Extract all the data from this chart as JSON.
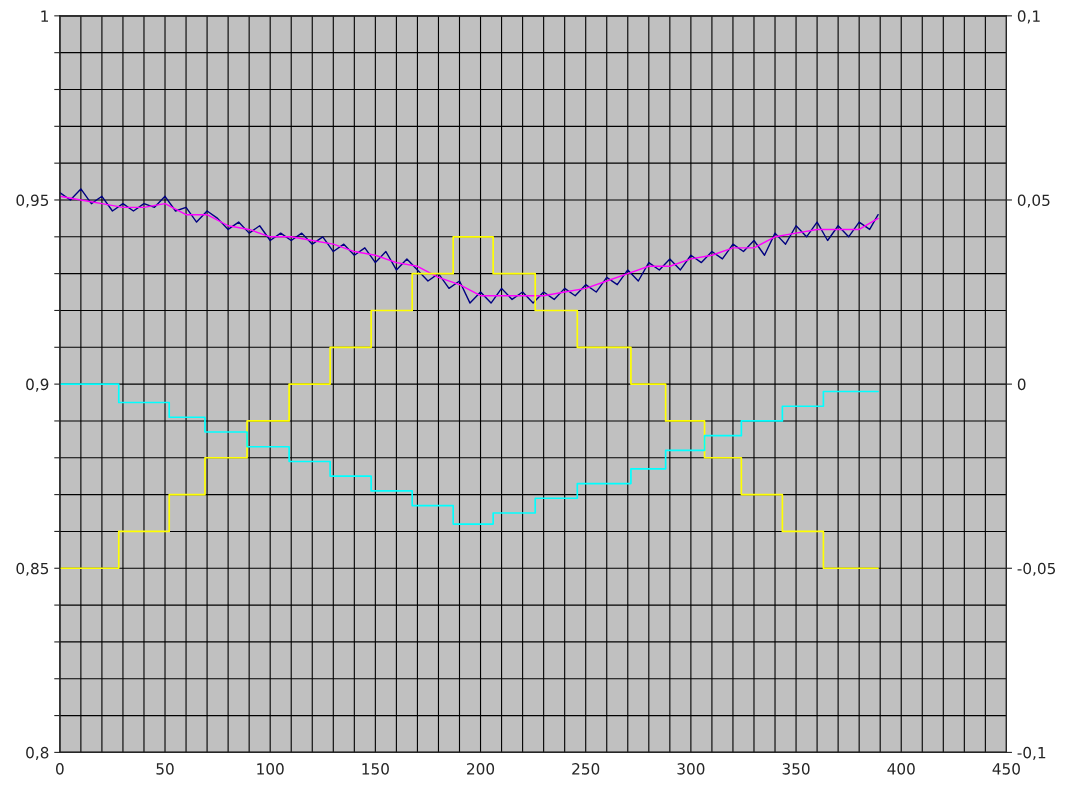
{
  "chart_data": {
    "type": "line",
    "xlim": [
      0,
      450
    ],
    "xticks": [
      0,
      {
        "value": 10,
        "label": null
      },
      {
        "value": 20,
        "label": null
      },
      {
        "value": 30,
        "label": null
      },
      {
        "value": 40,
        "label": null
      },
      50,
      {
        "value": 60,
        "label": null
      },
      {
        "value": 70,
        "label": null
      },
      {
        "value": 80,
        "label": null
      },
      {
        "value": 90,
        "label": null
      },
      100,
      {
        "value": 110,
        "label": null
      },
      {
        "value": 120,
        "label": null
      },
      {
        "value": 130,
        "label": null
      },
      {
        "value": 140,
        "label": null
      },
      150,
      {
        "value": 160,
        "label": null
      },
      {
        "value": 170,
        "label": null
      },
      {
        "value": 180,
        "label": null
      },
      {
        "value": 190,
        "label": null
      },
      200,
      {
        "value": 210,
        "label": null
      },
      {
        "value": 220,
        "label": null
      },
      {
        "value": 230,
        "label": null
      },
      {
        "value": 240,
        "label": null
      },
      250,
      {
        "value": 260,
        "label": null
      },
      {
        "value": 270,
        "label": null
      },
      {
        "value": 280,
        "label": null
      },
      {
        "value": 290,
        "label": null
      },
      300,
      {
        "value": 310,
        "label": null
      },
      {
        "value": 320,
        "label": null
      },
      {
        "value": 330,
        "label": null
      },
      {
        "value": 340,
        "label": null
      },
      350,
      {
        "value": 360,
        "label": null
      },
      {
        "value": 370,
        "label": null
      },
      {
        "value": 380,
        "label": null
      },
      {
        "value": 390,
        "label": null
      },
      400,
      {
        "value": 410,
        "label": null
      },
      {
        "value": 420,
        "label": null
      },
      {
        "value": 430,
        "label": null
      },
      {
        "value": 440,
        "label": null
      },
      450
    ],
    "ylim": [
      0.8,
      1
    ],
    "yticks": [
      {
        "value": 0.8,
        "label": "0,8"
      },
      {
        "value": 0.81,
        "label": null
      },
      {
        "value": 0.82,
        "label": null
      },
      {
        "value": 0.83,
        "label": null
      },
      {
        "value": 0.84,
        "label": null
      },
      {
        "value": 0.85,
        "label": "0,85"
      },
      {
        "value": 0.86,
        "label": null
      },
      {
        "value": 0.87,
        "label": null
      },
      {
        "value": 0.88,
        "label": null
      },
      {
        "value": 0.89,
        "label": null
      },
      {
        "value": 0.9,
        "label": "0,9"
      },
      {
        "value": 0.91,
        "label": null
      },
      {
        "value": 0.92,
        "label": null
      },
      {
        "value": 0.93,
        "label": null
      },
      {
        "value": 0.94,
        "label": null
      },
      {
        "value": 0.95,
        "label": "0,95"
      },
      {
        "value": 0.96,
        "label": null
      },
      {
        "value": 0.97,
        "label": null
      },
      {
        "value": 0.98,
        "label": null
      },
      {
        "value": 0.99,
        "label": null
      },
      {
        "value": 1,
        "label": "1"
      }
    ],
    "y2lim": [
      -0.1,
      0.1
    ],
    "y2ticks": [
      {
        "value": -0.1,
        "label": "-0,1"
      },
      {
        "value": -0.05,
        "label": "-0,05"
      },
      {
        "value": 0,
        "label": "0"
      },
      {
        "value": 0.05,
        "label": "0,05"
      },
      {
        "value": 0.1,
        "label": "0,1"
      }
    ],
    "grid": true,
    "legend": false,
    "series": [
      {
        "color": "#000080",
        "x": [
          0,
          5,
          10,
          15,
          20,
          25,
          30,
          35,
          40,
          45,
          50,
          55,
          60,
          65,
          70,
          75,
          80,
          85,
          90,
          95,
          100,
          105,
          110,
          115,
          120,
          125,
          130,
          135,
          140,
          145,
          150,
          155,
          160,
          165,
          170,
          175,
          180,
          185,
          190,
          195,
          200,
          205,
          210,
          215,
          220,
          225,
          230,
          235,
          240,
          245,
          250,
          255,
          260,
          265,
          270,
          275,
          280,
          285,
          290,
          295,
          300,
          305,
          310,
          315,
          320,
          325,
          330,
          335,
          340,
          345,
          350,
          355,
          360,
          365,
          370,
          375,
          380,
          385,
          389
        ],
        "values": [
          0.952,
          0.95,
          0.953,
          0.949,
          0.951,
          0.947,
          0.949,
          0.947,
          0.949,
          0.948,
          0.951,
          0.947,
          0.948,
          0.944,
          0.947,
          0.945,
          0.942,
          0.944,
          0.941,
          0.943,
          0.939,
          0.941,
          0.939,
          0.941,
          0.938,
          0.94,
          0.936,
          0.938,
          0.935,
          0.937,
          0.933,
          0.936,
          0.931,
          0.934,
          0.931,
          0.928,
          0.93,
          0.926,
          0.928,
          0.922,
          0.925,
          0.922,
          0.926,
          0.923,
          0.925,
          0.922,
          0.925,
          0.923,
          0.926,
          0.924,
          0.927,
          0.925,
          0.929,
          0.927,
          0.931,
          0.928,
          0.933,
          0.931,
          0.934,
          0.931,
          0.935,
          0.933,
          0.936,
          0.934,
          0.938,
          0.936,
          0.939,
          0.935,
          0.941,
          0.938,
          0.943,
          0.94,
          0.944,
          0.939,
          0.943,
          0.94,
          0.944,
          0.942,
          0.946
        ]
      },
      {
        "color": "#ff00ff",
        "x": [
          0,
          10,
          20,
          30,
          40,
          50,
          60,
          70,
          80,
          90,
          100,
          110,
          120,
          130,
          140,
          150,
          160,
          170,
          180,
          190,
          200,
          210,
          220,
          230,
          240,
          250,
          260,
          270,
          280,
          290,
          300,
          310,
          320,
          330,
          340,
          350,
          360,
          370,
          380,
          389
        ],
        "values": [
          0.951,
          0.95,
          0.949,
          0.948,
          0.948,
          0.949,
          0.946,
          0.946,
          0.943,
          0.942,
          0.94,
          0.94,
          0.939,
          0.938,
          0.936,
          0.935,
          0.933,
          0.932,
          0.929,
          0.927,
          0.924,
          0.924,
          0.924,
          0.924,
          0.925,
          0.926,
          0.928,
          0.93,
          0.932,
          0.932,
          0.934,
          0.935,
          0.937,
          0.937,
          0.94,
          0.941,
          0.942,
          0.942,
          0.942,
          0.945
        ]
      },
      {
        "type": "step",
        "color": "#ffff00",
        "x": [
          0,
          28,
          52,
          69,
          89,
          109,
          128.5,
          148,
          167.5,
          187,
          206,
          226,
          246,
          271.5,
          288,
          306.5,
          324,
          343.5,
          363,
          389
        ],
        "values": [
          0.85,
          0.86,
          0.87,
          0.88,
          0.89,
          0.9,
          0.91,
          0.92,
          0.93,
          0.94,
          0.93,
          0.92,
          0.91,
          0.9,
          0.89,
          0.88,
          0.87,
          0.86,
          0.85,
          0.85
        ]
      },
      {
        "type": "step",
        "color": "#00ffff",
        "x": [
          0,
          28,
          52,
          69,
          89,
          109,
          128.5,
          148,
          167.5,
          187,
          206,
          226,
          246,
          271.5,
          288,
          306.5,
          324,
          343.5,
          363,
          389
        ],
        "values": [
          0.9,
          0.895,
          0.891,
          0.887,
          0.883,
          0.879,
          0.875,
          0.871,
          0.867,
          0.862,
          0.865,
          0.869,
          0.873,
          0.877,
          0.882,
          0.886,
          0.89,
          0.894,
          0.898,
          0.898
        ]
      }
    ]
  }
}
